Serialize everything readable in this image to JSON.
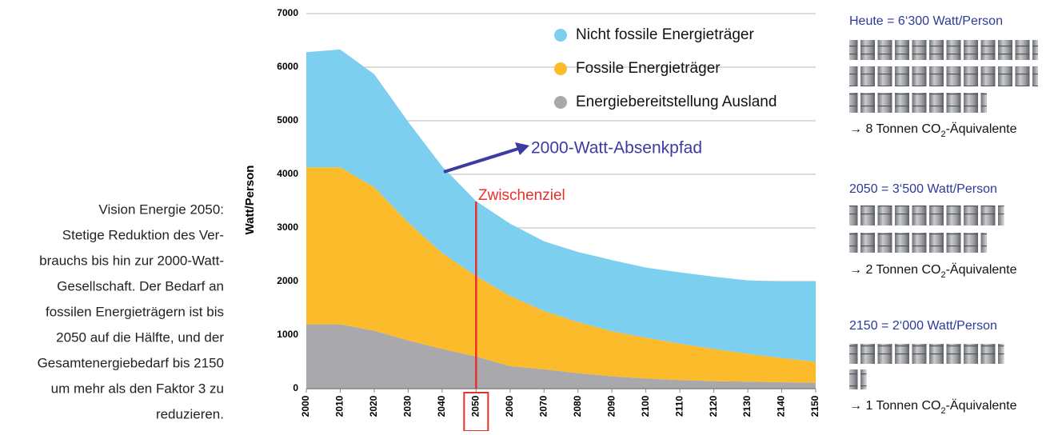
{
  "chart_data": {
    "type": "stacked_area",
    "y_label": "Watt/Person",
    "x": [
      2000,
      2010,
      2020,
      2030,
      2040,
      2050,
      2060,
      2070,
      2080,
      2090,
      2100,
      2110,
      2120,
      2130,
      2140,
      2150
    ],
    "xlim": [
      2000,
      2150
    ],
    "xticks": [
      2000,
      2010,
      2020,
      2030,
      2040,
      2050,
      2060,
      2070,
      2080,
      2090,
      2100,
      2110,
      2120,
      2130,
      2140,
      2150
    ],
    "ylim": [
      0,
      7000
    ],
    "yticks": [
      0,
      1000,
      2000,
      3000,
      4000,
      5000,
      6000,
      7000
    ],
    "grid": true,
    "series": [
      {
        "name": "Energiebereitstellung Ausland",
        "color": "#a9a9ad",
        "values": [
          1200,
          1200,
          1080,
          900,
          740,
          600,
          420,
          360,
          290,
          230,
          190,
          160,
          140,
          130,
          120,
          110
        ]
      },
      {
        "name": "Fossile Energieträger",
        "color": "#fbbb2a",
        "values": [
          2930,
          2930,
          2680,
          2200,
          1790,
          1500,
          1310,
          1090,
          950,
          840,
          760,
          680,
          600,
          520,
          450,
          390
        ]
      },
      {
        "name": "Nicht fossile Energieträger",
        "color": "#7dcff0",
        "values": [
          2150,
          2200,
          2110,
          1880,
          1620,
          1400,
          1350,
          1300,
          1310,
          1330,
          1310,
          1330,
          1350,
          1370,
          1430,
          1500
        ]
      }
    ],
    "annotations": {
      "path": "2000-Watt-Absenkpfad",
      "milestone": "Zwischenziel"
    }
  },
  "caption": [
    "Vision Energie 2050:",
    "Stetige Reduktion des Ver-",
    "brauchs bis hin zur 2000-Watt-",
    "Gesellschaft. Der Bedarf an",
    "fossilen Energieträgern ist bis",
    "2050 auf die Hälfte, und der",
    "Gesamtenergiebedarf bis 2150",
    "um mehr als den Faktor 3 zu",
    "reduzieren."
  ],
  "panels": [
    {
      "title": "Heute = 6‘300 Watt/Person",
      "result": {
        "prefix": "→ 8 Tonnen CO",
        "sub": "2",
        "suffix": "-Äquivalente"
      }
    },
    {
      "title": "2050 = 3‘500 Watt/Person",
      "result": {
        "prefix": "→ 2 Tonnen CO",
        "sub": "2",
        "suffix": "-Äquivalente"
      }
    },
    {
      "title": "2150 = 2‘000 Watt/Person",
      "result": {
        "prefix": "→ 1 Tonnen CO",
        "sub": "2",
        "suffix": "-Äquivalente"
      }
    }
  ]
}
